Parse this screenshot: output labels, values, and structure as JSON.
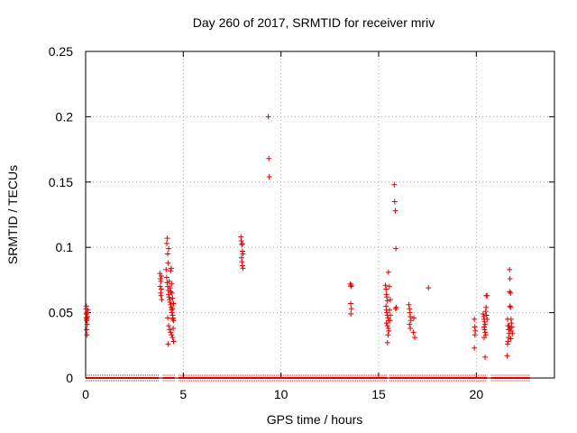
{
  "chart_data": {
    "type": "scatter",
    "title": "Day 260 of 2017, SRMTID for receiver mriv",
    "xlabel": "GPS time / hours",
    "ylabel": "SRMTID / TECUs",
    "xlim": [
      0,
      24
    ],
    "ylim": [
      0,
      0.25
    ],
    "x_ticks": [
      0,
      5,
      10,
      15,
      20
    ],
    "x_tick_labels": [
      "0",
      "5",
      "10",
      "15",
      "20"
    ],
    "y_ticks": [
      0,
      0.05,
      0.1,
      0.15,
      0.2,
      0.25
    ],
    "y_tick_labels": [
      "0",
      "0.05",
      "0.1",
      "0.15",
      "0.2",
      "0.25"
    ],
    "grid": true,
    "marker": "+",
    "color": "#e00000",
    "zero_band_segments": [
      [
        0.0,
        3.75
      ],
      [
        3.95,
        4.55
      ],
      [
        4.75,
        15.45
      ],
      [
        15.55,
        20.55
      ],
      [
        20.75,
        22.75
      ]
    ],
    "points": [
      [
        0.02,
        0.053
      ],
      [
        0.03,
        0.049
      ],
      [
        0.04,
        0.046
      ],
      [
        0.05,
        0.044
      ],
      [
        0.06,
        0.05
      ],
      [
        0.07,
        0.045
      ],
      [
        0.08,
        0.041
      ],
      [
        0.05,
        0.037
      ],
      [
        0.06,
        0.033
      ],
      [
        0.1,
        0.047
      ],
      [
        0.12,
        0.052
      ],
      [
        0.04,
        0.055
      ],
      [
        3.8,
        0.08
      ],
      [
        3.83,
        0.076
      ],
      [
        3.85,
        0.074
      ],
      [
        3.82,
        0.07
      ],
      [
        3.84,
        0.065
      ],
      [
        3.86,
        0.063
      ],
      [
        3.88,
        0.078
      ],
      [
        3.9,
        0.06
      ],
      [
        3.87,
        0.068
      ],
      [
        4.15,
        0.103
      ],
      [
        4.18,
        0.107
      ],
      [
        4.2,
        0.095
      ],
      [
        4.22,
        0.088
      ],
      [
        4.25,
        0.099
      ],
      [
        4.12,
        0.083
      ],
      [
        4.15,
        0.077
      ],
      [
        4.17,
        0.073
      ],
      [
        4.2,
        0.07
      ],
      [
        4.23,
        0.067
      ],
      [
        4.25,
        0.064
      ],
      [
        4.27,
        0.062
      ],
      [
        4.3,
        0.06
      ],
      [
        4.32,
        0.058
      ],
      [
        4.35,
        0.056
      ],
      [
        4.38,
        0.054
      ],
      [
        4.4,
        0.052
      ],
      [
        4.42,
        0.05
      ],
      [
        4.45,
        0.048
      ],
      [
        4.47,
        0.046
      ],
      [
        4.5,
        0.044
      ],
      [
        4.2,
        0.046
      ],
      [
        4.25,
        0.04
      ],
      [
        4.3,
        0.037
      ],
      [
        4.35,
        0.035
      ],
      [
        4.4,
        0.033
      ],
      [
        4.45,
        0.031
      ],
      [
        4.22,
        0.026
      ],
      [
        4.5,
        0.028
      ],
      [
        4.48,
        0.038
      ],
      [
        4.42,
        0.065
      ],
      [
        4.45,
        0.061
      ],
      [
        4.4,
        0.072
      ],
      [
        4.5,
        0.057
      ],
      [
        4.35,
        0.082
      ],
      [
        4.38,
        0.084
      ],
      [
        4.28,
        0.074
      ],
      [
        4.32,
        0.069
      ],
      [
        4.36,
        0.066
      ],
      [
        4.44,
        0.053
      ],
      [
        4.46,
        0.045
      ],
      [
        7.95,
        0.108
      ],
      [
        7.97,
        0.105
      ],
      [
        8.0,
        0.102
      ],
      [
        8.02,
        0.103
      ],
      [
        8.05,
        0.095
      ],
      [
        7.98,
        0.092
      ],
      [
        8.0,
        0.089
      ],
      [
        8.02,
        0.086
      ],
      [
        8.05,
        0.084
      ],
      [
        8.03,
        0.097
      ],
      [
        9.35,
        0.2
      ],
      [
        9.38,
        0.168
      ],
      [
        9.4,
        0.154
      ],
      [
        13.55,
        0.072
      ],
      [
        13.58,
        0.07
      ],
      [
        13.6,
        0.071
      ],
      [
        13.57,
        0.057
      ],
      [
        13.6,
        0.053
      ],
      [
        13.58,
        0.049
      ],
      [
        15.35,
        0.071
      ],
      [
        15.38,
        0.068
      ],
      [
        15.4,
        0.064
      ],
      [
        15.42,
        0.062
      ],
      [
        15.45,
        0.059
      ],
      [
        15.38,
        0.055
      ],
      [
        15.4,
        0.052
      ],
      [
        15.42,
        0.05
      ],
      [
        15.45,
        0.048
      ],
      [
        15.48,
        0.046
      ],
      [
        15.5,
        0.044
      ],
      [
        15.4,
        0.042
      ],
      [
        15.45,
        0.04
      ],
      [
        15.5,
        0.038
      ],
      [
        15.52,
        0.036
      ],
      [
        15.48,
        0.033
      ],
      [
        15.45,
        0.027
      ],
      [
        15.5,
        0.081
      ],
      [
        15.55,
        0.07
      ],
      [
        15.6,
        0.06
      ],
      [
        15.55,
        0.052
      ],
      [
        15.6,
        0.048
      ],
      [
        15.58,
        0.044
      ],
      [
        15.8,
        0.148
      ],
      [
        15.82,
        0.135
      ],
      [
        15.85,
        0.128
      ],
      [
        15.88,
        0.099
      ],
      [
        15.9,
        0.054
      ],
      [
        15.87,
        0.053
      ],
      [
        16.55,
        0.056
      ],
      [
        16.58,
        0.053
      ],
      [
        16.6,
        0.05
      ],
      [
        16.62,
        0.047
      ],
      [
        16.65,
        0.044
      ],
      [
        16.58,
        0.041
      ],
      [
        16.62,
        0.038
      ],
      [
        16.8,
        0.046
      ],
      [
        16.78,
        0.035
      ],
      [
        16.85,
        0.031
      ],
      [
        17.55,
        0.069
      ],
      [
        19.9,
        0.045
      ],
      [
        19.92,
        0.039
      ],
      [
        19.95,
        0.036
      ],
      [
        19.93,
        0.033
      ],
      [
        19.9,
        0.023
      ],
      [
        20.35,
        0.049
      ],
      [
        20.38,
        0.047
      ],
      [
        20.4,
        0.045
      ],
      [
        20.42,
        0.043
      ],
      [
        20.45,
        0.041
      ],
      [
        20.4,
        0.039
      ],
      [
        20.42,
        0.037
      ],
      [
        20.45,
        0.035
      ],
      [
        20.48,
        0.033
      ],
      [
        20.4,
        0.031
      ],
      [
        20.5,
        0.063
      ],
      [
        20.55,
        0.063
      ],
      [
        20.5,
        0.054
      ],
      [
        20.48,
        0.051
      ],
      [
        20.52,
        0.048
      ],
      [
        20.55,
        0.045
      ],
      [
        20.45,
        0.016
      ],
      [
        21.6,
        0.045
      ],
      [
        21.62,
        0.04
      ],
      [
        21.65,
        0.037
      ],
      [
        21.68,
        0.034
      ],
      [
        21.65,
        0.031
      ],
      [
        21.62,
        0.028
      ],
      [
        21.6,
        0.026
      ],
      [
        21.58,
        0.017
      ],
      [
        21.7,
        0.083
      ],
      [
        21.72,
        0.076
      ],
      [
        21.7,
        0.066
      ],
      [
        21.75,
        0.065
      ],
      [
        21.72,
        0.055
      ],
      [
        21.75,
        0.054
      ],
      [
        21.78,
        0.045
      ],
      [
        21.8,
        0.042
      ],
      [
        21.82,
        0.039
      ],
      [
        21.78,
        0.036
      ],
      [
        21.85,
        0.034
      ],
      [
        21.68,
        0.04
      ],
      [
        21.72,
        0.038
      ],
      [
        21.76,
        0.03
      ]
    ]
  }
}
